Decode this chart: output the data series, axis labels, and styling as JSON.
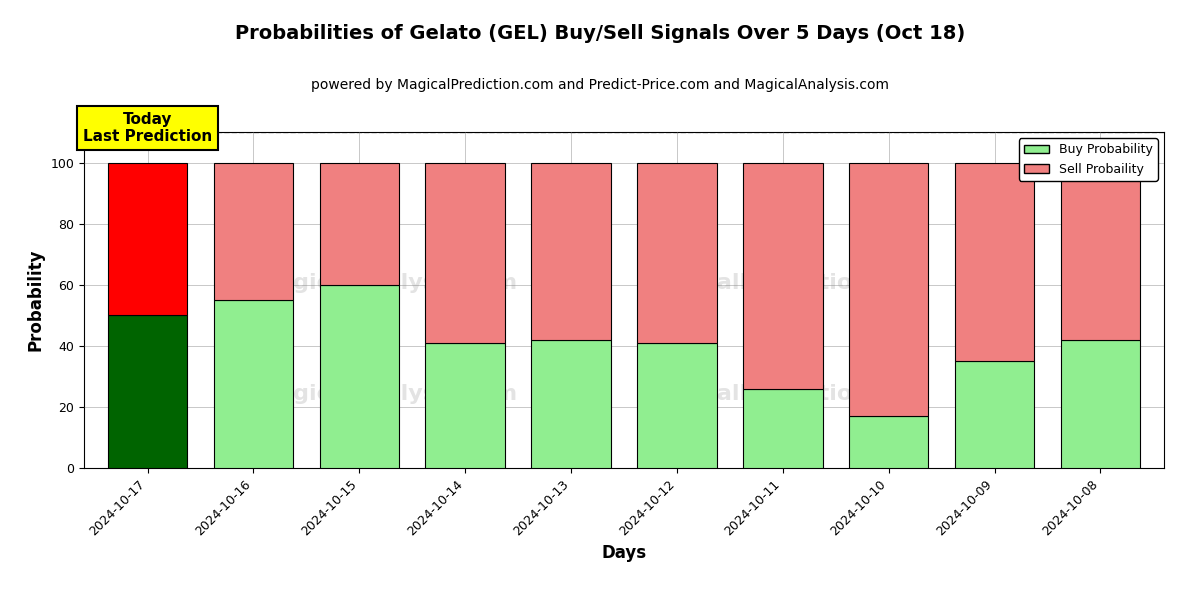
{
  "title": "Probabilities of Gelato (GEL) Buy/Sell Signals Over 5 Days (Oct 18)",
  "subtitle": "powered by MagicalPrediction.com and Predict-Price.com and MagicalAnalysis.com",
  "xlabel": "Days",
  "ylabel": "Probability",
  "dates": [
    "2024-10-17",
    "2024-10-16",
    "2024-10-15",
    "2024-10-14",
    "2024-10-13",
    "2024-10-12",
    "2024-10-11",
    "2024-10-10",
    "2024-10-09",
    "2024-10-08"
  ],
  "buy_values": [
    50,
    55,
    60,
    41,
    42,
    41,
    26,
    17,
    35,
    42
  ],
  "sell_values": [
    50,
    45,
    40,
    59,
    58,
    59,
    74,
    83,
    65,
    58
  ],
  "today_buy_color": "#006400",
  "today_sell_color": "#ff0000",
  "buy_color": "#90EE90",
  "sell_color": "#F08080",
  "bar_edge_color": "#000000",
  "ylim": [
    0,
    110
  ],
  "yticks": [
    0,
    20,
    40,
    60,
    80,
    100
  ],
  "dashed_line_y": 110,
  "legend_buy_label": "Buy Probability",
  "legend_sell_label": "Sell Probaility",
  "annotation_text": "Today\nLast Prediction",
  "annotation_fontsize": 11,
  "title_fontsize": 14,
  "subtitle_fontsize": 10,
  "axis_label_fontsize": 12,
  "tick_fontsize": 9
}
